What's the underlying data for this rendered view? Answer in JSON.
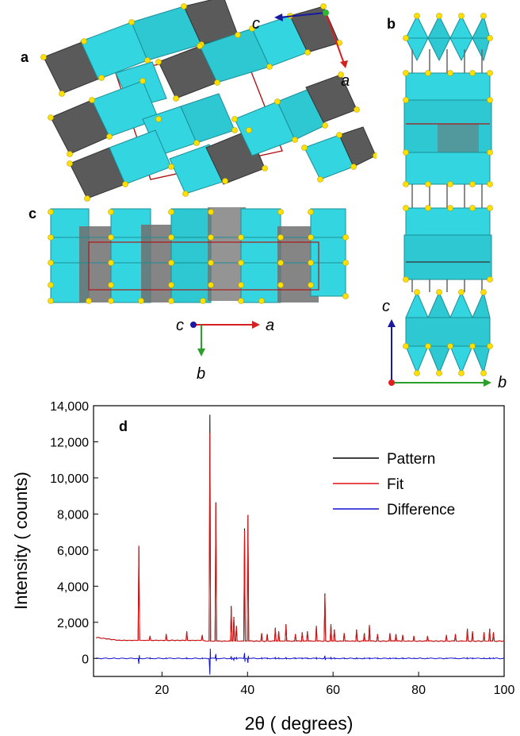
{
  "panels": {
    "a": {
      "label": "a",
      "axes": {
        "h": "c",
        "v": "a"
      },
      "colors": {
        "h": "#1a1aa0",
        "v": "#d42020",
        "origin": "#2db82d"
      }
    },
    "b": {
      "label": "b",
      "axes": {
        "v": "c",
        "h": "b"
      },
      "colors": {
        "v": "#1a1aa0",
        "h": "#2aa02a",
        "origin": "#e02020"
      }
    },
    "c": {
      "label": "c",
      "axes": {
        "origin": "c",
        "h": "a",
        "v": "b"
      },
      "colors": {
        "origin": "#1a1aa0",
        "h": "#d42020",
        "v": "#2aa02a"
      }
    },
    "d": {
      "label": "d"
    }
  },
  "structure_colors": {
    "polyhedron": "#33d6e0",
    "polyhedron_dark": "#1aa6b2",
    "dark_octahedron": "#555555",
    "atom": "#ffe000",
    "cell_edge": "#b01515"
  },
  "chart_data": {
    "type": "line",
    "xlabel": "2θ ( degrees)",
    "ylabel": "Intensity ( counts)",
    "xlim": [
      4,
      100
    ],
    "ylim": [
      -1000,
      14000
    ],
    "x_ticks": [
      20,
      40,
      60,
      80,
      100
    ],
    "x_tick_labels": [
      "20",
      "40",
      "60",
      "80",
      "100"
    ],
    "y_ticks": [
      0,
      2000,
      4000,
      6000,
      8000,
      10000,
      12000,
      14000
    ],
    "y_tick_labels": [
      "0",
      "2,000",
      "4,000",
      "6,000",
      "8,000",
      "10,000",
      "12,000",
      "14,000"
    ],
    "legend_position": "top-right",
    "background_level": 1000,
    "series": [
      {
        "name": "Pattern",
        "color": "#000000"
      },
      {
        "name": "Fit",
        "color": "#e01010"
      },
      {
        "name": "Difference",
        "color": "#1010d0"
      }
    ],
    "peaks": [
      {
        "x": 14.6,
        "pattern": 6200,
        "fit": 6250,
        "diff": -300
      },
      {
        "x": 17.2,
        "pattern": 1250,
        "fit": 1240,
        "diff": 40
      },
      {
        "x": 21.0,
        "pattern": 1350,
        "fit": 1330,
        "diff": 30
      },
      {
        "x": 25.8,
        "pattern": 1500,
        "fit": 1480,
        "diff": 40
      },
      {
        "x": 29.4,
        "pattern": 1300,
        "fit": 1290,
        "diff": 30
      },
      {
        "x": 31.2,
        "pattern": 13500,
        "fit": 12500,
        "diff": -900
      },
      {
        "x": 32.6,
        "pattern": 8650,
        "fit": 8600,
        "diff": 250
      },
      {
        "x": 36.2,
        "pattern": 2900,
        "fit": 2850,
        "diff": 120
      },
      {
        "x": 36.8,
        "pattern": 2300,
        "fit": 2250,
        "diff": -100
      },
      {
        "x": 37.4,
        "pattern": 1800,
        "fit": 1780,
        "diff": 60
      },
      {
        "x": 39.3,
        "pattern": 7200,
        "fit": 7100,
        "diff": 300
      },
      {
        "x": 40.1,
        "pattern": 7950,
        "fit": 7950,
        "diff": -250
      },
      {
        "x": 43.3,
        "pattern": 1400,
        "fit": 1390,
        "diff": 40
      },
      {
        "x": 44.6,
        "pattern": 1350,
        "fit": 1340,
        "diff": 30
      },
      {
        "x": 46.5,
        "pattern": 1700,
        "fit": 1680,
        "diff": 50
      },
      {
        "x": 47.3,
        "pattern": 1500,
        "fit": 1480,
        "diff": 40
      },
      {
        "x": 49.0,
        "pattern": 1900,
        "fit": 1880,
        "diff": 50
      },
      {
        "x": 51.2,
        "pattern": 1350,
        "fit": 1340,
        "diff": 30
      },
      {
        "x": 52.8,
        "pattern": 1450,
        "fit": 1440,
        "diff": 30
      },
      {
        "x": 54.0,
        "pattern": 1500,
        "fit": 1490,
        "diff": 30
      },
      {
        "x": 56.1,
        "pattern": 1800,
        "fit": 1780,
        "diff": 50
      },
      {
        "x": 58.1,
        "pattern": 3600,
        "fit": 3500,
        "diff": 150
      },
      {
        "x": 59.5,
        "pattern": 1900,
        "fit": 1880,
        "diff": 60
      },
      {
        "x": 60.3,
        "pattern": 1600,
        "fit": 1580,
        "diff": 40
      },
      {
        "x": 62.6,
        "pattern": 1400,
        "fit": 1390,
        "diff": 30
      },
      {
        "x": 65.5,
        "pattern": 1600,
        "fit": 1590,
        "diff": 40
      },
      {
        "x": 67.3,
        "pattern": 1400,
        "fit": 1390,
        "diff": 30
      },
      {
        "x": 68.5,
        "pattern": 1850,
        "fit": 1830,
        "diff": 40
      },
      {
        "x": 70.4,
        "pattern": 1350,
        "fit": 1340,
        "diff": 30
      },
      {
        "x": 73.3,
        "pattern": 1400,
        "fit": 1390,
        "diff": 30
      },
      {
        "x": 74.7,
        "pattern": 1350,
        "fit": 1340,
        "diff": 30
      },
      {
        "x": 76.3,
        "pattern": 1300,
        "fit": 1290,
        "diff": 30
      },
      {
        "x": 78.9,
        "pattern": 1250,
        "fit": 1240,
        "diff": 20
      },
      {
        "x": 82.1,
        "pattern": 1250,
        "fit": 1240,
        "diff": 20
      },
      {
        "x": 86.5,
        "pattern": 1300,
        "fit": 1290,
        "diff": 20
      },
      {
        "x": 88.6,
        "pattern": 1350,
        "fit": 1340,
        "diff": 20
      },
      {
        "x": 91.4,
        "pattern": 1650,
        "fit": 1630,
        "diff": 40
      },
      {
        "x": 92.6,
        "pattern": 1500,
        "fit": 1490,
        "diff": 30
      },
      {
        "x": 95.3,
        "pattern": 1450,
        "fit": 1440,
        "diff": 30
      },
      {
        "x": 96.6,
        "pattern": 1650,
        "fit": 1640,
        "diff": 40
      },
      {
        "x": 97.5,
        "pattern": 1450,
        "fit": 1440,
        "diff": 30
      }
    ]
  }
}
